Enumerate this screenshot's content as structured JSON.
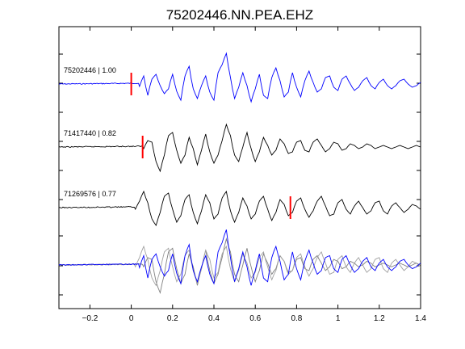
{
  "chart_data": {
    "type": "line",
    "title": "75202446.NN.PEA.EHZ",
    "xlabel": "",
    "ylabel": "",
    "xlim": [
      -0.35,
      1.4
    ],
    "x_ticks": [
      -0.2,
      0,
      0.2,
      0.4,
      0.6,
      0.8,
      1,
      1.2,
      1.4
    ],
    "x_tick_labels": [
      "−0.2",
      "0",
      "0.2",
      "0.4",
      "0.6",
      "0.8",
      "1",
      "1.2",
      "1.4"
    ],
    "grid": false,
    "traces": [
      {
        "label": "75202446 | 1.00",
        "color": "#0000ff",
        "pick_time": 0.0,
        "onset": 0.04,
        "amplitude": 1.0,
        "waveform": [
          [
            0,
            4
          ],
          [
            0.04,
            -3
          ],
          [
            0.06,
            10
          ],
          [
            0.08,
            -14
          ],
          [
            0.1,
            6
          ],
          [
            0.12,
            12
          ],
          [
            0.14,
            -2
          ],
          [
            0.16,
            -12
          ],
          [
            0.18,
            -6
          ],
          [
            0.2,
            12
          ],
          [
            0.22,
            -9
          ],
          [
            0.24,
            -20
          ],
          [
            0.26,
            10
          ],
          [
            0.28,
            22
          ],
          [
            0.3,
            -6
          ],
          [
            0.32,
            -18
          ],
          [
            0.34,
            -2
          ],
          [
            0.36,
            10
          ],
          [
            0.38,
            -10
          ],
          [
            0.4,
            -20
          ],
          [
            0.42,
            14
          ],
          [
            0.44,
            24
          ],
          [
            0.46,
            38
          ],
          [
            0.48,
            8
          ],
          [
            0.5,
            -18
          ],
          [
            0.52,
            -4
          ],
          [
            0.54,
            14
          ],
          [
            0.56,
            -2
          ],
          [
            0.58,
            -22
          ],
          [
            0.6,
            -6
          ],
          [
            0.62,
            12
          ],
          [
            0.64,
            -14
          ],
          [
            0.66,
            -18
          ],
          [
            0.68,
            8
          ],
          [
            0.7,
            20
          ],
          [
            0.72,
            4
          ],
          [
            0.74,
            -16
          ],
          [
            0.76,
            -10
          ],
          [
            0.78,
            14
          ],
          [
            0.8,
            -4
          ],
          [
            0.82,
            -16
          ],
          [
            0.84,
            4
          ],
          [
            0.86,
            16
          ],
          [
            0.88,
            2
          ],
          [
            0.9,
            -10
          ],
          [
            0.92,
            -6
          ],
          [
            0.94,
            8
          ],
          [
            0.96,
            10
          ],
          [
            0.98,
            -4
          ],
          [
            1.0,
            -8
          ],
          [
            1.02,
            6
          ],
          [
            1.04,
            10
          ],
          [
            1.06,
            0
          ],
          [
            1.08,
            -8
          ],
          [
            1.1,
            -4
          ],
          [
            1.12,
            4
          ],
          [
            1.14,
            8
          ],
          [
            1.16,
            -2
          ],
          [
            1.18,
            -6
          ],
          [
            1.2,
            2
          ],
          [
            1.22,
            6
          ],
          [
            1.24,
            -2
          ],
          [
            1.26,
            -6
          ],
          [
            1.28,
            -2
          ],
          [
            1.3,
            4
          ],
          [
            1.32,
            6
          ],
          [
            1.34,
            0
          ],
          [
            1.36,
            -4
          ],
          [
            1.38,
            -2
          ],
          [
            1.4,
            2
          ]
        ]
      },
      {
        "label": "71417440 | 0.82",
        "color": "#000000",
        "pick_time": 0.055,
        "onset": 0.06,
        "amplitude": 0.82,
        "waveform": [
          [
            0,
            2
          ],
          [
            0.06,
            -2
          ],
          [
            0.08,
            8
          ],
          [
            0.1,
            6
          ],
          [
            0.12,
            -18
          ],
          [
            0.14,
            -30
          ],
          [
            0.16,
            -10
          ],
          [
            0.18,
            14
          ],
          [
            0.2,
            18
          ],
          [
            0.22,
            -4
          ],
          [
            0.24,
            -20
          ],
          [
            0.26,
            -10
          ],
          [
            0.28,
            12
          ],
          [
            0.3,
            -2
          ],
          [
            0.32,
            -22
          ],
          [
            0.34,
            -4
          ],
          [
            0.36,
            16
          ],
          [
            0.38,
            -6
          ],
          [
            0.4,
            -20
          ],
          [
            0.42,
            -10
          ],
          [
            0.44,
            8
          ],
          [
            0.46,
            28
          ],
          [
            0.48,
            14
          ],
          [
            0.5,
            -10
          ],
          [
            0.52,
            -18
          ],
          [
            0.54,
            0
          ],
          [
            0.56,
            18
          ],
          [
            0.58,
            -2
          ],
          [
            0.6,
            -18
          ],
          [
            0.62,
            -6
          ],
          [
            0.64,
            12
          ],
          [
            0.66,
            2
          ],
          [
            0.68,
            -10
          ],
          [
            0.7,
            -4
          ],
          [
            0.72,
            10
          ],
          [
            0.74,
            4
          ],
          [
            0.76,
            -8
          ],
          [
            0.78,
            -6
          ],
          [
            0.8,
            6
          ],
          [
            0.82,
            8
          ],
          [
            0.84,
            -4
          ],
          [
            0.86,
            -6
          ],
          [
            0.88,
            6
          ],
          [
            0.9,
            10
          ],
          [
            0.92,
            2
          ],
          [
            0.94,
            -6
          ],
          [
            0.96,
            -2
          ],
          [
            0.98,
            6
          ],
          [
            1.0,
            4
          ],
          [
            1.02,
            -4
          ],
          [
            1.04,
            -2
          ],
          [
            1.06,
            4
          ],
          [
            1.08,
            2
          ],
          [
            1.1,
            -2
          ],
          [
            1.12,
            0
          ],
          [
            1.14,
            4
          ],
          [
            1.16,
            2
          ],
          [
            1.18,
            -2
          ],
          [
            1.2,
            0
          ],
          [
            1.22,
            2
          ],
          [
            1.24,
            0
          ],
          [
            1.26,
            -2
          ],
          [
            1.28,
            0
          ],
          [
            1.3,
            2
          ],
          [
            1.32,
            0
          ],
          [
            1.34,
            -2
          ],
          [
            1.36,
            0
          ],
          [
            1.38,
            2
          ],
          [
            1.4,
            0
          ]
        ]
      },
      {
        "label": "71269576 | 0.77",
        "color": "#000000",
        "pick_time": 0.77,
        "onset": 0.02,
        "amplitude": 0.77,
        "waveform": [
          [
            0,
            4
          ],
          [
            0.02,
            -2
          ],
          [
            0.04,
            8
          ],
          [
            0.06,
            20
          ],
          [
            0.08,
            6
          ],
          [
            0.1,
            -14
          ],
          [
            0.12,
            -22
          ],
          [
            0.14,
            -6
          ],
          [
            0.16,
            14
          ],
          [
            0.18,
            18
          ],
          [
            0.2,
            -2
          ],
          [
            0.22,
            -18
          ],
          [
            0.24,
            -10
          ],
          [
            0.26,
            10
          ],
          [
            0.28,
            16
          ],
          [
            0.3,
            -6
          ],
          [
            0.32,
            -20
          ],
          [
            0.34,
            -4
          ],
          [
            0.36,
            16
          ],
          [
            0.38,
            6
          ],
          [
            0.4,
            -14
          ],
          [
            0.42,
            -8
          ],
          [
            0.44,
            12
          ],
          [
            0.46,
            20
          ],
          [
            0.48,
            -4
          ],
          [
            0.5,
            -18
          ],
          [
            0.52,
            -6
          ],
          [
            0.54,
            12
          ],
          [
            0.56,
            2
          ],
          [
            0.58,
            -14
          ],
          [
            0.6,
            -8
          ],
          [
            0.62,
            8
          ],
          [
            0.64,
            14
          ],
          [
            0.66,
            -2
          ],
          [
            0.68,
            -16
          ],
          [
            0.7,
            -6
          ],
          [
            0.72,
            10
          ],
          [
            0.74,
            4
          ],
          [
            0.76,
            -10
          ],
          [
            0.78,
            -6
          ],
          [
            0.8,
            8
          ],
          [
            0.82,
            12
          ],
          [
            0.84,
            -2
          ],
          [
            0.86,
            -12
          ],
          [
            0.88,
            -4
          ],
          [
            0.9,
            8
          ],
          [
            0.92,
            14
          ],
          [
            0.94,
            2
          ],
          [
            0.96,
            -10
          ],
          [
            0.98,
            -8
          ],
          [
            1.0,
            6
          ],
          [
            1.02,
            10
          ],
          [
            1.04,
            -2
          ],
          [
            1.06,
            -8
          ],
          [
            1.08,
            2
          ],
          [
            1.1,
            8
          ],
          [
            1.12,
            0
          ],
          [
            1.14,
            -8
          ],
          [
            1.16,
            -4
          ],
          [
            1.18,
            6
          ],
          [
            1.2,
            8
          ],
          [
            1.22,
            -4
          ],
          [
            1.24,
            -8
          ],
          [
            1.26,
            2
          ],
          [
            1.28,
            6
          ],
          [
            1.3,
            0
          ],
          [
            1.32,
            -6
          ],
          [
            1.34,
            -2
          ],
          [
            1.36,
            4
          ],
          [
            1.38,
            2
          ],
          [
            1.4,
            -2
          ]
        ]
      }
    ]
  }
}
